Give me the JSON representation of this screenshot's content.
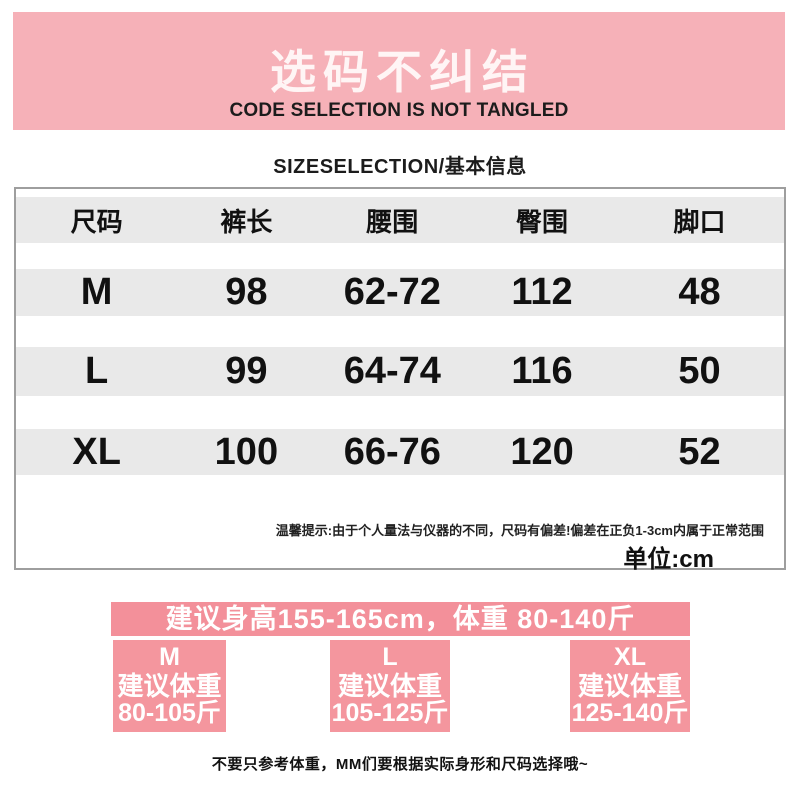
{
  "banner": {
    "title": "选码不纠结",
    "subtitle": "CODE SELECTION IS NOT TANGLED"
  },
  "section_title": "SIZESELECTION/基本信息",
  "size_table": {
    "columns": [
      "尺码",
      "裤长",
      "腰围",
      "臀围",
      "脚口"
    ],
    "rows": [
      {
        "size": "M",
        "values": [
          "98",
          "62-72",
          "112",
          "48"
        ]
      },
      {
        "size": "L",
        "values": [
          "99",
          "64-74",
          "116",
          "50"
        ]
      },
      {
        "size": "XL",
        "values": [
          "100",
          "66-76",
          "120",
          "52"
        ]
      }
    ],
    "note": "温馨提示:由于个人量法与仪器的不同，尺码有偏差!偏差在正负1-3cm内属于正常范围",
    "unit": "单位:cm"
  },
  "advice_banner": "建议身高155-165cm，体重 80-140斤",
  "weight_boxes": [
    {
      "size": "M",
      "label": "建议体重",
      "range": "80-105斤"
    },
    {
      "size": "L",
      "label": "建议体重",
      "range": "105-125斤"
    },
    {
      "size": "XL",
      "label": "建议体重",
      "range": "125-140斤"
    }
  ],
  "footer_note": "不要只参考体重，MM们要根据实际身形和尺码选择哦~",
  "colors": {
    "pink_light": "#f6b1b8",
    "pink_accent": "#f3909a",
    "pink_box": "#f4969e",
    "table_stripe": "#e9e9e9",
    "table_border": "#9e9e9e",
    "text_dark": "#1c1c1c"
  }
}
